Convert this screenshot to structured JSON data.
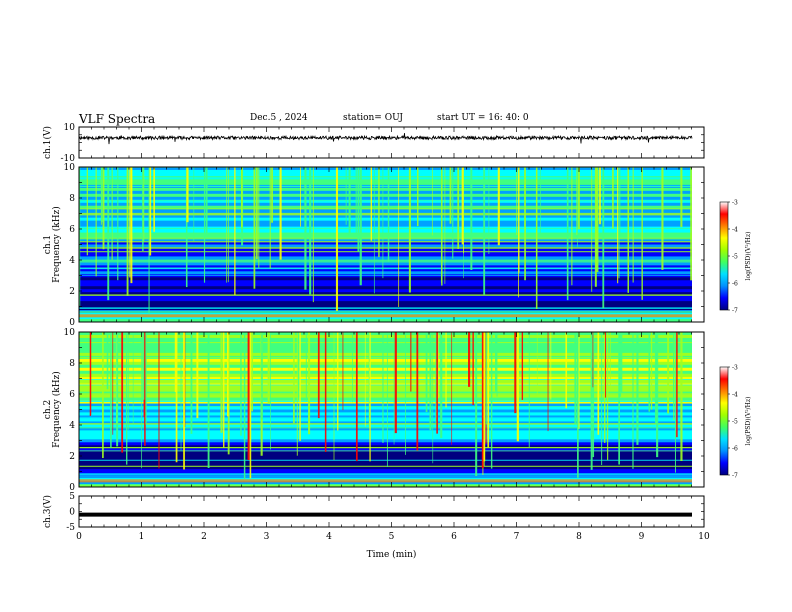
{
  "header": {
    "title": "VLF Spectra",
    "date": "Dec.5 , 2024",
    "station": "station= OUJ",
    "start": "start UT = 16: 40: 0"
  },
  "colors": {
    "colormap": [
      "#000080",
      "#0000ff",
      "#00a0ff",
      "#00ffff",
      "#40ff80",
      "#a0ff20",
      "#ffff00",
      "#ff8000",
      "#ff0000",
      "#ffffff"
    ],
    "waveform": "#000000"
  },
  "chart_data": [
    {
      "type": "line",
      "panel": "ch1-waveform",
      "ylabel": "ch.1(V)",
      "ylim": [
        -10,
        10
      ],
      "yticks": [
        "10",
        "-10"
      ],
      "baseline": 3,
      "xlim": [
        0,
        10
      ]
    },
    {
      "type": "heatmap",
      "panel": "ch1-spectrogram",
      "ylabel_top": "ch.1",
      "ylabel": "Frequency (kHz)",
      "ylim": [
        0,
        10
      ],
      "yticks": [
        "0",
        "2",
        "4",
        "6",
        "8",
        "10"
      ],
      "xlim": [
        0,
        9.8
      ],
      "colorbar": {
        "label": "log(PSD)(V²/Hz)",
        "ticks": [
          "-3",
          "-4",
          "-5",
          "-6",
          "-7"
        ],
        "range": [
          -7,
          -3
        ]
      }
    },
    {
      "type": "heatmap",
      "panel": "ch2-spectrogram",
      "ylabel_top": "ch.2",
      "ylabel": "Frequency (kHz)",
      "ylim": [
        0,
        10
      ],
      "yticks": [
        "0",
        "2",
        "4",
        "6",
        "8",
        "10"
      ],
      "xlim": [
        0,
        9.8
      ],
      "colorbar": {
        "label": "log(PSD)(V²/Hz)",
        "ticks": [
          "-3",
          "-4",
          "-5",
          "-6",
          "-7"
        ],
        "range": [
          -7,
          -3
        ]
      }
    },
    {
      "type": "line",
      "panel": "ch3-waveform",
      "ylabel": "ch.3(V)",
      "ylim": [
        -5,
        5
      ],
      "yticks": [
        "5",
        "0",
        "-5"
      ],
      "baseline": -1,
      "xlim": [
        0,
        10
      ]
    }
  ],
  "xaxis": {
    "label": "Time (min)",
    "ticks": [
      "0",
      "1",
      "2",
      "3",
      "4",
      "5",
      "6",
      "7",
      "8",
      "9",
      "10"
    ],
    "range": [
      0,
      10
    ]
  }
}
